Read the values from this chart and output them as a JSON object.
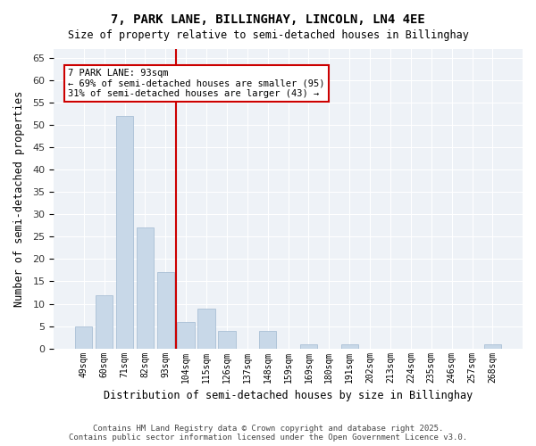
{
  "title1": "7, PARK LANE, BILLINGHAY, LINCOLN, LN4 4EE",
  "title2": "Size of property relative to semi-detached houses in Billinghay",
  "xlabel": "Distribution of semi-detached houses by size in Billinghay",
  "ylabel": "Number of semi-detached properties",
  "categories": [
    "49sqm",
    "60sqm",
    "71sqm",
    "82sqm",
    "93sqm",
    "104sqm",
    "115sqm",
    "126sqm",
    "137sqm",
    "148sqm",
    "159sqm",
    "169sqm",
    "180sqm",
    "191sqm",
    "202sqm",
    "213sqm",
    "224sqm",
    "235sqm",
    "246sqm",
    "257sqm",
    "268sqm"
  ],
  "values": [
    5,
    12,
    52,
    27,
    17,
    6,
    9,
    4,
    0,
    4,
    0,
    1,
    0,
    1,
    0,
    0,
    0,
    0,
    0,
    0,
    1
  ],
  "bar_color": "#c8d8e8",
  "bar_edge_color": "#a0b8d0",
  "vline_color": "#cc0000",
  "annotation_title": "7 PARK LANE: 93sqm",
  "annotation_line1": "← 69% of semi-detached houses are smaller (95)",
  "annotation_line2": "31% of semi-detached houses are larger (43) →",
  "annotation_box_color": "#cc0000",
  "ylim": [
    0,
    67
  ],
  "yticks": [
    0,
    5,
    10,
    15,
    20,
    25,
    30,
    35,
    40,
    45,
    50,
    55,
    60,
    65
  ],
  "bg_color": "#eef2f7",
  "footer1": "Contains HM Land Registry data © Crown copyright and database right 2025.",
  "footer2": "Contains public sector information licensed under the Open Government Licence v3.0."
}
